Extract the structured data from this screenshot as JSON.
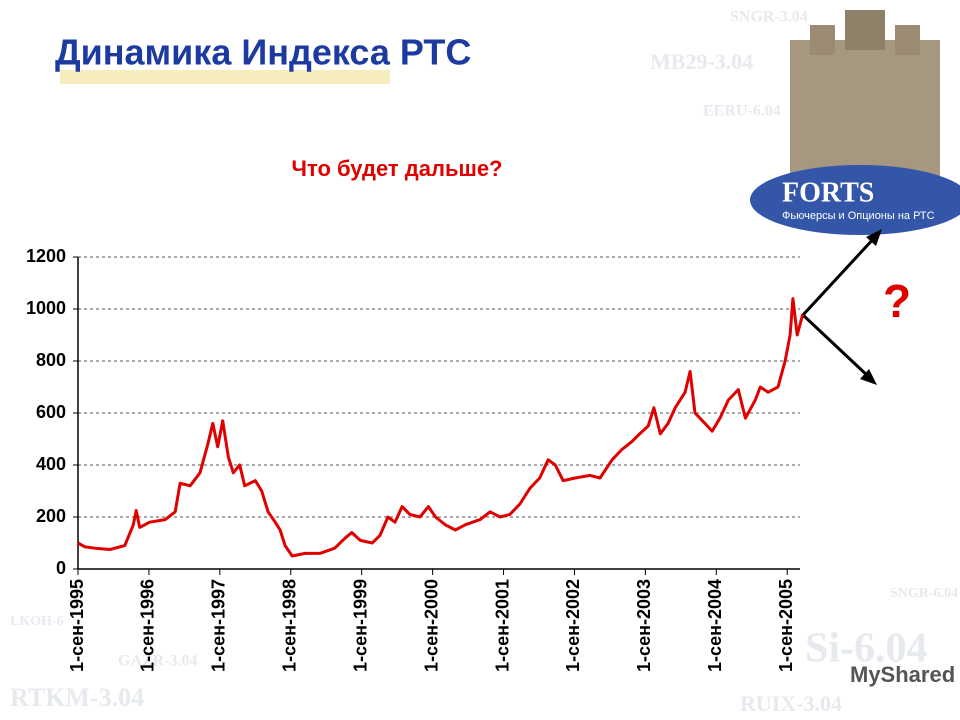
{
  "slide": {
    "logo": {
      "name": "FORTS",
      "tagline": "Фьючерсы и Опционы на РТС"
    },
    "watermarks": [
      "SNGR-3.04",
      "MB29-3.04",
      "EERU-6.04",
      "SNGR-6.04",
      "LKOH-6",
      "GAZR-3.04",
      "RTKM-3.04",
      "Si-6.04",
      "RUIX-3.04"
    ],
    "credit": "MyShared"
  },
  "chart_data": {
    "type": "line",
    "title": "Динамика Индекса РТС",
    "subtitle": "Что будет дальше?",
    "annotation": "?",
    "x": [
      1995.67,
      1995.77,
      1995.91,
      1996.12,
      1996.33,
      1996.45,
      1996.49,
      1996.54,
      1996.68,
      1996.9,
      1997.04,
      1997.11,
      1997.25,
      1997.39,
      1997.5,
      1997.57,
      1997.64,
      1997.71,
      1997.79,
      1997.86,
      1997.95,
      1998.02,
      1998.17,
      1998.26,
      1998.35,
      1998.45,
      1998.52,
      1998.59,
      1998.69,
      1998.87,
      1999.08,
      1999.29,
      1999.44,
      1999.53,
      1999.65,
      1999.82,
      1999.93,
      2000.04,
      2000.14,
      2000.24,
      2000.35,
      2000.49,
      2000.61,
      2000.71,
      2000.85,
      2000.99,
      2001.13,
      2001.34,
      2001.48,
      2001.62,
      2001.76,
      2001.9,
      2002.04,
      2002.18,
      2002.3,
      2002.4,
      2002.51,
      2002.68,
      2002.89,
      2003.03,
      2003.2,
      2003.34,
      2003.48,
      2003.59,
      2003.71,
      2003.79,
      2003.88,
      2003.99,
      2004.09,
      2004.23,
      2004.3,
      2004.37,
      2004.51,
      2004.61,
      2004.72,
      2004.84,
      2004.98,
      2005.08,
      2005.22,
      2005.29,
      2005.4,
      2005.54,
      2005.64,
      2005.71,
      2005.75,
      2005.81,
      2005.89
    ],
    "series": [
      {
        "name": "РТС",
        "color": "#e00000",
        "values": [
          100,
          85,
          80,
          75,
          90,
          170,
          225,
          160,
          180,
          190,
          220,
          330,
          320,
          370,
          480,
          560,
          470,
          570,
          430,
          370,
          400,
          320,
          340,
          300,
          220,
          180,
          150,
          90,
          50,
          60,
          60,
          80,
          120,
          140,
          110,
          100,
          130,
          200,
          180,
          240,
          210,
          200,
          240,
          200,
          170,
          150,
          170,
          190,
          220,
          200,
          210,
          250,
          310,
          350,
          420,
          400,
          340,
          350,
          360,
          350,
          420,
          460,
          490,
          520,
          550,
          620,
          520,
          560,
          620,
          680,
          760,
          600,
          560,
          530,
          580,
          650,
          690,
          580,
          650,
          700,
          680,
          700,
          800,
          900,
          1040,
          900,
          980
        ]
      }
    ],
    "xlim": [
      1995.67,
      2005.85
    ],
    "xticks": [
      {
        "value": 1995.67,
        "label": "1-сен-1995"
      },
      {
        "value": 1996.67,
        "label": "1-сен-1996"
      },
      {
        "value": 1997.67,
        "label": "1-сен-1997"
      },
      {
        "value": 1998.67,
        "label": "1-сен-1998"
      },
      {
        "value": 1999.67,
        "label": "1-сен-1999"
      },
      {
        "value": 2000.67,
        "label": "1-сен-2000"
      },
      {
        "value": 2001.67,
        "label": "1-сен-2001"
      },
      {
        "value": 2002.67,
        "label": "1-сен-2002"
      },
      {
        "value": 2003.67,
        "label": "1-сен-2003"
      },
      {
        "value": 2004.67,
        "label": "1-сен-2004"
      },
      {
        "value": 2005.67,
        "label": "1-сен-2005"
      }
    ],
    "ylim": [
      0,
      1200
    ],
    "yticks": [
      0,
      200,
      400,
      600,
      800,
      1000,
      1200
    ],
    "grid": true
  }
}
